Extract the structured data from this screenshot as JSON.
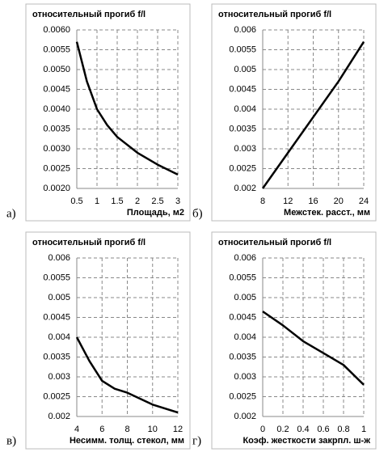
{
  "chart_data": [
    {
      "type": "line",
      "title": "относительный прогиб f/l",
      "panel_label": "а)",
      "xlabel": "Площадь, м2",
      "x": [
        0.5,
        0.75,
        1,
        1.25,
        1.5,
        2,
        2.5,
        3
      ],
      "values": [
        0.0057,
        0.0047,
        0.004,
        0.0036,
        0.0033,
        0.0029,
        0.0026,
        0.00235
      ],
      "color": "#000000",
      "xlim": [
        0.5,
        3
      ],
      "xticks": [
        0.5,
        1,
        1.5,
        2,
        2.5,
        3
      ],
      "ylim": [
        0.002,
        0.006
      ],
      "yticks": [
        {
          "value": 0.002,
          "label": "0.0020"
        },
        {
          "value": 0.0025,
          "label": "0.0025"
        },
        {
          "value": 0.003,
          "label": "0.0030"
        },
        {
          "value": 0.0035,
          "label": "0.0035"
        },
        {
          "value": 0.004,
          "label": "0.0040"
        },
        {
          "value": 0.0045,
          "label": "0.0045"
        },
        {
          "value": 0.005,
          "label": "0.0050"
        },
        {
          "value": 0.0055,
          "label": "0.0055"
        },
        {
          "value": 0.006,
          "label": "0.0060"
        }
      ],
      "grid": true
    },
    {
      "type": "line",
      "title": "относительный прогиб f/l",
      "panel_label": "б)",
      "xlabel": "Межстек. расст., мм",
      "x": [
        8,
        12,
        16,
        20,
        24
      ],
      "values": [
        0.002,
        0.0029,
        0.0038,
        0.0047,
        0.0057
      ],
      "color": "#000000",
      "xlim": [
        8,
        24
      ],
      "xticks": [
        8,
        12,
        16,
        20,
        24
      ],
      "ylim": [
        0.002,
        0.006
      ],
      "yticks": [
        0.002,
        0.0025,
        0.003,
        0.0035,
        0.004,
        0.0045,
        0.005,
        0.0055,
        0.006
      ],
      "grid": true
    },
    {
      "type": "line",
      "title": "относительный прогиб f/l",
      "panel_label": "в)",
      "xlabel": "Несимм. толщ. стекол, мм",
      "x": [
        4,
        5,
        6,
        7,
        8,
        10,
        12
      ],
      "values": [
        0.004,
        0.0034,
        0.0029,
        0.0027,
        0.0026,
        0.0023,
        0.0021
      ],
      "color": "#000000",
      "xlim": [
        4,
        12
      ],
      "xticks": [
        4,
        6,
        8,
        10,
        12
      ],
      "ylim": [
        0.002,
        0.006
      ],
      "yticks": [
        0.002,
        0.0025,
        0.003,
        0.0035,
        0.004,
        0.0045,
        0.005,
        0.0055,
        0.006
      ],
      "grid": true
    },
    {
      "type": "line",
      "title": "относительный прогиб f/l",
      "panel_label": "г)",
      "xlabel": "Коэф. жесткости закрпл. ш-ж",
      "x": [
        0,
        0.2,
        0.4,
        0.6,
        0.8,
        1
      ],
      "values": [
        0.00465,
        0.0043,
        0.0039,
        0.0036,
        0.0033,
        0.0028
      ],
      "color": "#000000",
      "xlim": [
        0,
        1
      ],
      "xticks": [
        0,
        0.2,
        0.4,
        0.6,
        0.8,
        1
      ],
      "ylim": [
        0.002,
        0.006
      ],
      "yticks": [
        0.002,
        0.0025,
        0.003,
        0.0035,
        0.004,
        0.0045,
        0.005,
        0.0055,
        0.006
      ],
      "grid": true
    }
  ]
}
